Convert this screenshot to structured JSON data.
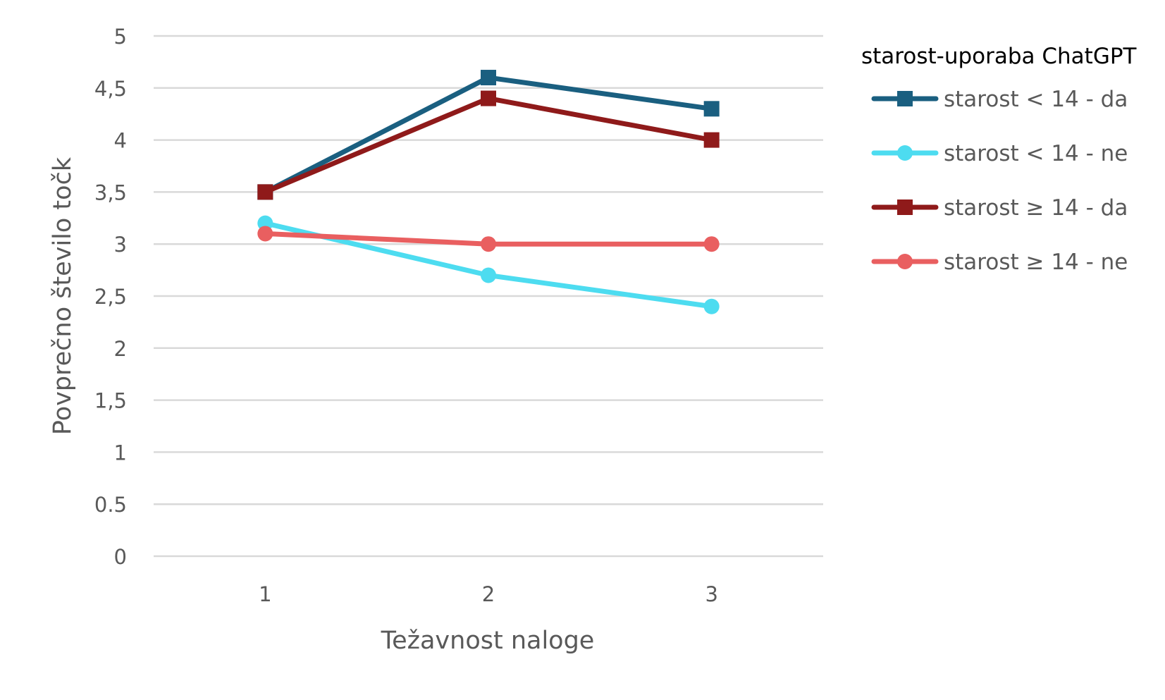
{
  "chart_data": {
    "type": "line",
    "title": "",
    "xlabel": "Težavnost naloge",
    "ylabel": "Povprečno število točk",
    "categories": [
      "1",
      "2",
      "3"
    ],
    "ylim": [
      0,
      5
    ],
    "yticks": [
      {
        "value": 0,
        "label": "0"
      },
      {
        "value": 0.5,
        "label": "0.5"
      },
      {
        "value": 1,
        "label": "1"
      },
      {
        "value": 1.5,
        "label": "1,5"
      },
      {
        "value": 2,
        "label": "2"
      },
      {
        "value": 2.5,
        "label": "2,5"
      },
      {
        "value": 3,
        "label": "3"
      },
      {
        "value": 3.5,
        "label": "3,5"
      },
      {
        "value": 4,
        "label": "4"
      },
      {
        "value": 4.5,
        "label": "4,5"
      },
      {
        "value": 5,
        "label": "5"
      }
    ],
    "grid": true,
    "legend": {
      "title": "starost-uporaba ChatGPT",
      "placement": "right"
    },
    "series": [
      {
        "name": "starost < 14 - da",
        "values": [
          3.5,
          4.6,
          4.3
        ],
        "color": "#1a5f80",
        "marker": "square"
      },
      {
        "name": "starost < 14 - ne",
        "values": [
          3.2,
          2.7,
          2.4
        ],
        "color": "#4ddcf0",
        "marker": "circle"
      },
      {
        "name": "starost ≥ 14 - da",
        "values": [
          3.5,
          4.4,
          4.0
        ],
        "color": "#8f1a1a",
        "marker": "square"
      },
      {
        "name": "starost ≥ 14 - ne",
        "values": [
          3.1,
          3.0,
          3.0
        ],
        "color": "#e95f60",
        "marker": "circle"
      }
    ]
  }
}
